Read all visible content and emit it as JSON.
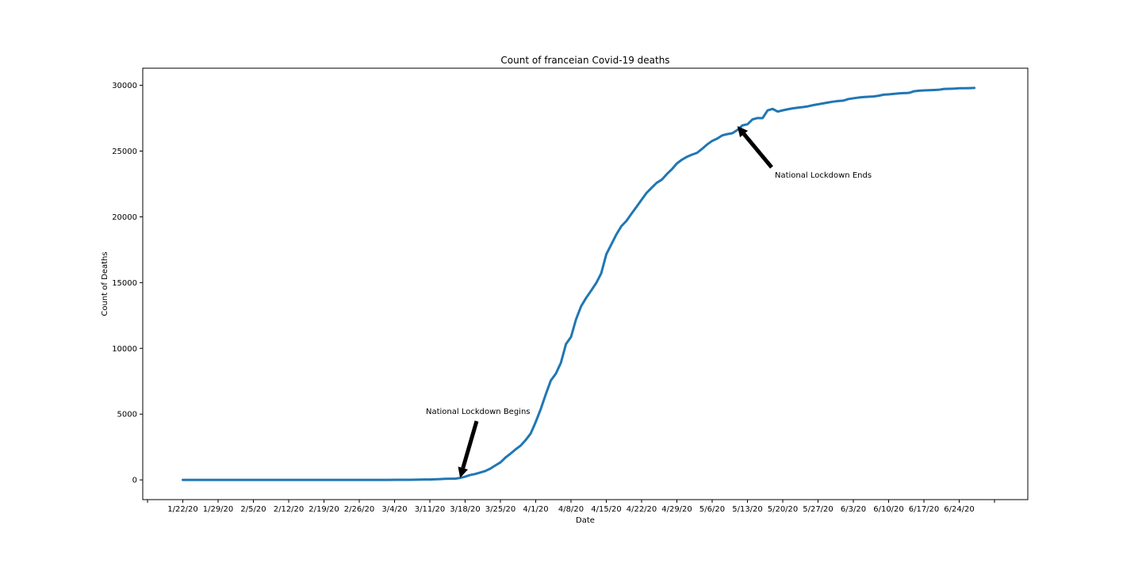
{
  "chart_data": {
    "type": "line",
    "title": "Count of franceian Covid-19 deaths",
    "xlabel": "Date",
    "ylabel": "Count of Deaths",
    "x_start": "1/22/20",
    "x_tick_labels": [
      "1/22/20",
      "1/29/20",
      "2/5/20",
      "2/12/20",
      "2/19/20",
      "2/26/20",
      "3/4/20",
      "3/11/20",
      "3/18/20",
      "3/25/20",
      "4/1/20",
      "4/8/20",
      "4/15/20",
      "4/22/20",
      "4/29/20",
      "5/6/20",
      "5/13/20",
      "5/20/20",
      "5/27/20",
      "6/3/20",
      "6/10/20",
      "6/17/20",
      "6/24/20"
    ],
    "y_ticks": [
      0,
      5000,
      10000,
      15000,
      20000,
      25000,
      30000
    ],
    "ylim": [
      -1500,
      31300
    ],
    "grid": false,
    "line_color": "#1f77b4",
    "series": [
      {
        "values": [
          0,
          0,
          0,
          0,
          0,
          0,
          0,
          0,
          0,
          0,
          0,
          0,
          0,
          0,
          0,
          0,
          0,
          0,
          0,
          0,
          0,
          0,
          0,
          0,
          1,
          1,
          1,
          1,
          1,
          1,
          1,
          1,
          1,
          1,
          2,
          2,
          2,
          2,
          2,
          2,
          2,
          3,
          4,
          7,
          9,
          11,
          16,
          19,
          30,
          33,
          48,
          61,
          79,
          91,
          91,
          148,
          244,
          372,
          450,
          562,
          674,
          860,
          1100,
          1331,
          1696,
          1995,
          2314,
          2606,
          3024,
          3523,
          4403,
          5387,
          6507,
          7560,
          8078,
          8911,
          10328,
          10869,
          12210,
          13197,
          13832,
          14393,
          14967,
          15712,
          17148,
          17901,
          18661,
          19294,
          19694,
          20240,
          20765,
          21296,
          21825,
          22215,
          22583,
          22824,
          23245,
          23615,
          24057,
          24344,
          24564,
          24728,
          24864,
          25168,
          25500,
          25772,
          25949,
          26192,
          26288,
          26356,
          26603,
          26952,
          27038,
          27408,
          27510,
          27504,
          28095,
          28203,
          28003,
          28097,
          28179,
          28250,
          28301,
          28344,
          28400,
          28489,
          28557,
          28626,
          28694,
          28756,
          28804,
          28835,
          28952,
          29013,
          29066,
          29106,
          29132,
          29154,
          29205,
          29286,
          29312,
          29346,
          29385,
          29407,
          29422,
          29542,
          29589,
          29610,
          29626,
          29643,
          29662,
          29723,
          29734,
          29749,
          29774,
          29776,
          29787,
          29800
        ]
      }
    ],
    "annotations": [
      {
        "text": "National Lockdown Begins",
        "target_date": "3/17/20",
        "target_value": 150
      },
      {
        "text": "National Lockdown Ends",
        "target_date": "5/11/20",
        "target_value": 26900
      }
    ]
  }
}
